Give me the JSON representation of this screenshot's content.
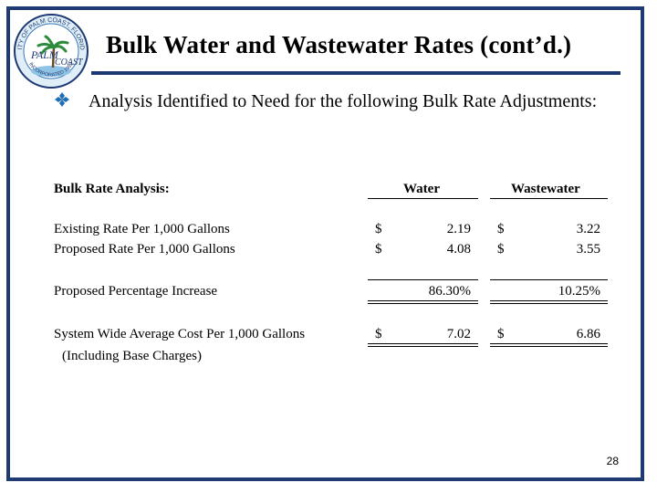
{
  "slide": {
    "title": "Bulk Water and Wastewater Rates (cont’d.)",
    "bullet": "Analysis Identified to Need for the following Bulk Rate Adjustments:",
    "page_number": "28",
    "accent_color": "#1f3a73",
    "bullet_color": "#1f6fb5"
  },
  "logo": {
    "icon": "city-seal-icon",
    "top_text": "CITY OF PALM COAST, FLORIDA",
    "main_text_1": "PALM",
    "main_text_2": "COAST",
    "bottom_text": "INCORPORATED 1999"
  },
  "table": {
    "header": {
      "label": "Bulk Rate Analysis:",
      "water": "Water",
      "wastewater": "Wastewater"
    },
    "rows": [
      {
        "label": "Existing Rate Per 1,000 Gallons",
        "water_cur": "$",
        "water": "2.19",
        "ww_cur": "$",
        "wastewater": "3.22"
      },
      {
        "label": "Proposed Rate Per 1,000 Gallons",
        "water_cur": "$",
        "water": "4.08",
        "ww_cur": "$",
        "wastewater": "3.55"
      }
    ],
    "percent_row": {
      "label": "Proposed Percentage Increase",
      "water": "86.30%",
      "wastewater": "10.25%"
    },
    "average_row": {
      "label": "System Wide Average Cost Per 1,000 Gallons",
      "sublabel": "(Including Base Charges)",
      "water_cur": "$",
      "water": "7.02",
      "ww_cur": "$",
      "wastewater": "6.86"
    }
  }
}
